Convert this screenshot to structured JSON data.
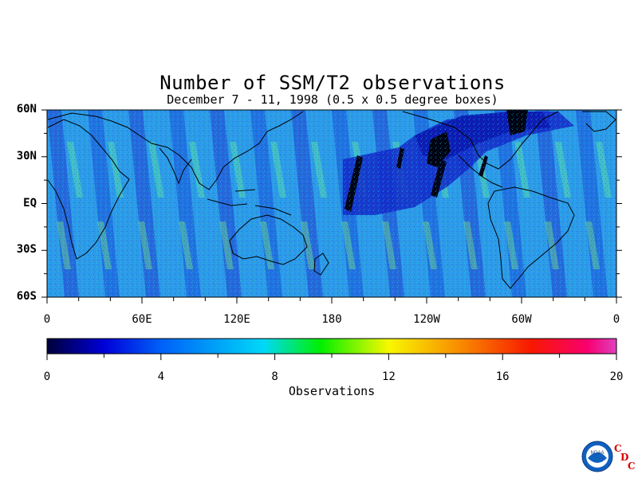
{
  "chart_data": {
    "type": "heatmap",
    "title": "Number of SSM/T2 observations",
    "subtitle": "December 7 - 11, 1998 (0.5 x 0.5 degree boxes)",
    "y_ticks": [
      "60N",
      "30N",
      "EQ",
      "30S",
      "60S"
    ],
    "y_tick_values": [
      60,
      30,
      0,
      -30,
      -60
    ],
    "x_ticks": [
      "0",
      "60E",
      "120E",
      "180",
      "120W",
      "60W",
      "0"
    ],
    "x_tick_values": [
      0,
      60,
      120,
      180,
      240,
      300,
      360
    ],
    "xlim": [
      0,
      360
    ],
    "ylim": [
      -60,
      60
    ],
    "colorbar": {
      "label": "Observations",
      "ticks": [
        "0",
        "4",
        "8",
        "12",
        "16",
        "20"
      ],
      "tick_values": [
        0,
        4,
        8,
        12,
        16,
        20
      ],
      "range": [
        0,
        20
      ],
      "colors": [
        "#00003a",
        "#0000d8",
        "#0060f8",
        "#00d8f8",
        "#00f000",
        "#f8f800",
        "#f89000",
        "#f81800",
        "#f80070",
        "#e040c0"
      ]
    }
  },
  "logo": {
    "icon": "noaa-logo-icon",
    "text": "NOAA",
    "cdc": [
      "C",
      "D",
      "C"
    ],
    "cdc_color": "#d80000"
  }
}
